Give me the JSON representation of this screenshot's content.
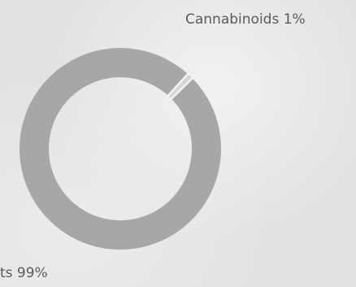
{
  "chart_data": {
    "type": "pie",
    "donut": true,
    "slices": [
      {
        "label": "Cannabinoids",
        "value": 1,
        "label_text": "Cannabinoids 1%"
      },
      {
        "label": "",
        "value": 99,
        "label_text": "ts 99%"
      }
    ],
    "colors": {
      "main_slice": "#a7a7a7",
      "small_slice": "#d6d6d6",
      "separator": "#f4f4f4"
    }
  }
}
